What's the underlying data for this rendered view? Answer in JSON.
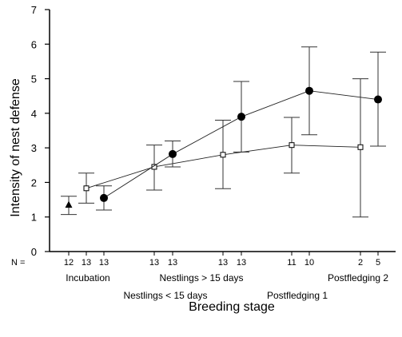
{
  "chart_data": {
    "type": "scatter",
    "title": "",
    "xlabel": "Breeding stage",
    "ylabel": "Intensity of nest defense",
    "ylim": [
      0,
      7
    ],
    "yticks": [
      0,
      1,
      2,
      3,
      4,
      5,
      6,
      7
    ],
    "grid": false,
    "legend": "none",
    "n_prefix": "N =",
    "n_labels": [
      "12",
      "13",
      "13",
      "13",
      "13",
      "13",
      "13",
      "11",
      "10",
      "2",
      "5"
    ],
    "stage_labels_upper": [
      "Incubation",
      "Nestlings > 15 days",
      "Postfledging 2"
    ],
    "stage_labels_lower": [
      "Nestlings < 15 days",
      "Postfledging 1"
    ],
    "series": [
      {
        "marker": "triangle",
        "points": [
          {
            "stage": "Incubation",
            "value": 1.35,
            "low": 1.07,
            "high": 1.6
          }
        ]
      },
      {
        "marker": "open-square",
        "points": [
          {
            "stage": "Incubation",
            "value": 1.83,
            "low": 1.4,
            "high": 2.27
          },
          {
            "stage": "Nestlings < 15 days",
            "value": 2.45,
            "low": 1.78,
            "high": 3.08
          },
          {
            "stage": "Nestlings > 15 days",
            "value": 2.8,
            "low": 1.82,
            "high": 3.8
          },
          {
            "stage": "Postfledging 1",
            "value": 3.08,
            "low": 2.27,
            "high": 3.88
          },
          {
            "stage": "Postfledging 2",
            "value": 3.02,
            "low": 1.0,
            "high": 5.0
          }
        ]
      },
      {
        "marker": "filled-circle",
        "points": [
          {
            "stage": "Incubation",
            "value": 1.55,
            "low": 1.2,
            "high": 1.9
          },
          {
            "stage": "Nestlings < 15 days",
            "value": 2.82,
            "low": 2.45,
            "high": 3.2
          },
          {
            "stage": "Nestlings > 15 days",
            "value": 3.9,
            "low": 2.88,
            "high": 4.92
          },
          {
            "stage": "Postfledging 1",
            "value": 4.65,
            "low": 3.38,
            "high": 5.92
          },
          {
            "stage": "Postfledging 2",
            "value": 4.4,
            "low": 3.05,
            "high": 5.77
          }
        ]
      }
    ]
  }
}
